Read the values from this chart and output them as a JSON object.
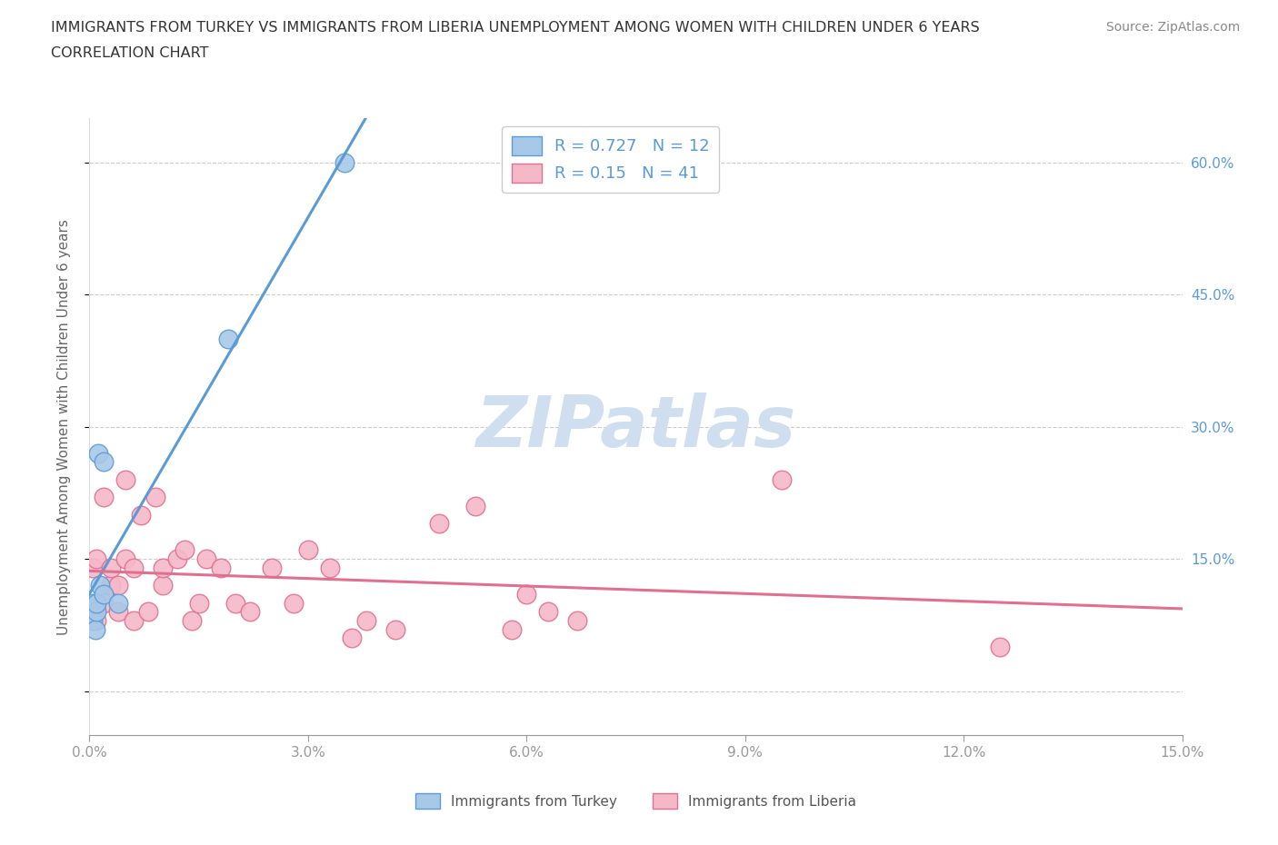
{
  "title_line1": "IMMIGRANTS FROM TURKEY VS IMMIGRANTS FROM LIBERIA UNEMPLOYMENT AMONG WOMEN WITH CHILDREN UNDER 6 YEARS",
  "title_line2": "CORRELATION CHART",
  "source": "Source: ZipAtlas.com",
  "ylabel": "Unemployment Among Women with Children Under 6 years",
  "xlim": [
    0.0,
    0.15
  ],
  "ylim": [
    -0.05,
    0.65
  ],
  "xticks": [
    0.0,
    0.03,
    0.06,
    0.09,
    0.12,
    0.15
  ],
  "xticklabels": [
    "0.0%",
    "3.0%",
    "6.0%",
    "9.0%",
    "12.0%",
    "15.0%"
  ],
  "right_ytick_positions": [
    0.6,
    0.45,
    0.3,
    0.15
  ],
  "right_yticklabels": [
    "60.0%",
    "45.0%",
    "30.0%",
    "15.0%"
  ],
  "turkey_color": "#a8c8e8",
  "turkey_edge_color": "#5b9bd5",
  "liberia_color": "#f4b8c8",
  "liberia_edge_color": "#e07090",
  "turkey_line_color": "#5b9bd5",
  "liberia_line_color": "#e07090",
  "R_turkey": 0.727,
  "N_turkey": 12,
  "R_liberia": 0.15,
  "N_liberia": 41,
  "watermark": "ZIPatlas",
  "watermark_color": "#d0dff0",
  "legend_label_turkey": "Immigrants from Turkey",
  "legend_label_liberia": "Immigrants from Liberia",
  "turkey_x": [
    0.0005,
    0.0005,
    0.0008,
    0.001,
    0.001,
    0.0012,
    0.0015,
    0.002,
    0.002,
    0.004,
    0.019,
    0.035
  ],
  "turkey_y": [
    0.08,
    0.1,
    0.07,
    0.09,
    0.1,
    0.27,
    0.12,
    0.26,
    0.11,
    0.1,
    0.4,
    0.6
  ],
  "liberia_x": [
    0.0005,
    0.001,
    0.001,
    0.002,
    0.002,
    0.003,
    0.003,
    0.004,
    0.004,
    0.005,
    0.005,
    0.006,
    0.006,
    0.007,
    0.008,
    0.009,
    0.01,
    0.01,
    0.012,
    0.013,
    0.014,
    0.015,
    0.016,
    0.018,
    0.02,
    0.022,
    0.025,
    0.028,
    0.03,
    0.033,
    0.036,
    0.038,
    0.042,
    0.048,
    0.053,
    0.058,
    0.06,
    0.063,
    0.067,
    0.095,
    0.125
  ],
  "liberia_y": [
    0.14,
    0.08,
    0.15,
    0.1,
    0.22,
    0.12,
    0.14,
    0.09,
    0.12,
    0.24,
    0.15,
    0.08,
    0.14,
    0.2,
    0.09,
    0.22,
    0.12,
    0.14,
    0.15,
    0.16,
    0.08,
    0.1,
    0.15,
    0.14,
    0.1,
    0.09,
    0.14,
    0.1,
    0.16,
    0.14,
    0.06,
    0.08,
    0.07,
    0.19,
    0.21,
    0.07,
    0.11,
    0.09,
    0.08,
    0.24,
    0.05
  ],
  "background_color": "#ffffff",
  "grid_color": "#cccccc",
  "title_color": "#333333",
  "axis_label_color": "#5b9bd5",
  "figsize": [
    14.06,
    9.3
  ],
  "dpi": 100
}
